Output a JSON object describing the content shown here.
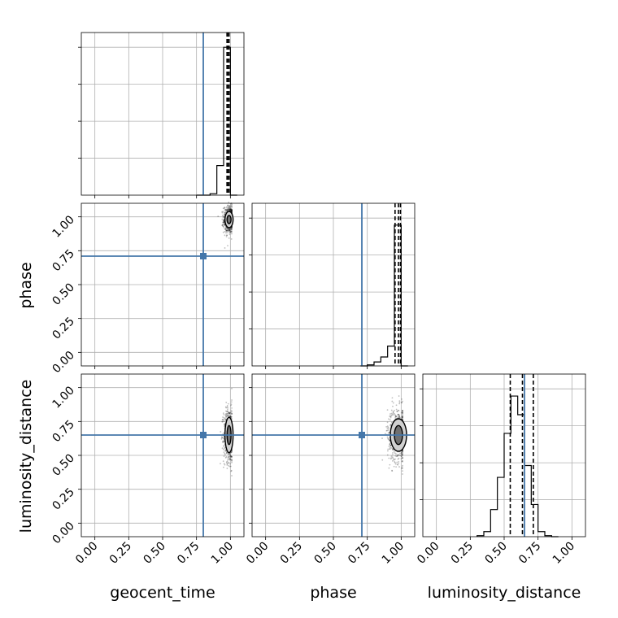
{
  "chart_data": {
    "type": "corner",
    "parameters": [
      "geocent_time",
      "phase",
      "luminosity_distance"
    ],
    "axis_labels": {
      "x": [
        "geocent_time",
        "phase",
        "luminosity_distance"
      ],
      "y": [
        "phase",
        "luminosity_distance"
      ]
    },
    "axis_range": [
      -0.1,
      1.1
    ],
    "ticks": [
      0.0,
      0.25,
      0.5,
      0.75,
      1.0
    ],
    "tick_labels": [
      "0.00",
      "0.25",
      "0.50",
      "0.75",
      "1.00"
    ],
    "grid": true,
    "truths": {
      "geocent_time": 0.8,
      "phase": 0.71,
      "luminosity_distance": 0.65,
      "color": "#4477aa"
    },
    "histograms": [
      {
        "parameter": "geocent_time",
        "bin_edges": [
          0.75,
          0.8,
          0.85,
          0.9,
          0.95,
          1.0,
          1.05
        ],
        "counts": [
          0,
          0,
          0.05,
          1.0,
          5.0,
          0
        ],
        "ylim": [
          0,
          5.5
        ],
        "quantiles": [
          0.975,
          0.98,
          0.99
        ]
      },
      {
        "parameter": "phase",
        "bin_edges": [
          0.7,
          0.75,
          0.8,
          0.85,
          0.9,
          0.95,
          1.0,
          1.05
        ],
        "counts": [
          0,
          0.05,
          0.2,
          0.45,
          1.0,
          7.1,
          0
        ],
        "ylim": [
          0,
          8.2
        ],
        "quantiles": [
          0.955,
          0.98,
          0.995
        ]
      },
      {
        "parameter": "luminosity_distance",
        "bin_edges": [
          0.3,
          0.35,
          0.4,
          0.45,
          0.5,
          0.55,
          0.6,
          0.65,
          0.7,
          0.75,
          0.8,
          0.85,
          0.9
        ],
        "counts": [
          0.03,
          0.15,
          0.8,
          1.75,
          3.05,
          4.15,
          3.6,
          2.1,
          0.95,
          0.15,
          0.03,
          0
        ],
        "ylim": [
          0,
          4.8
        ],
        "quantiles": [
          0.545,
          0.635,
          0.715
        ]
      }
    ],
    "joint_2d": [
      {
        "x_param": "geocent_time",
        "y_param": "phase",
        "center": [
          0.99,
          0.98
        ],
        "spread": [
          0.02,
          0.05
        ],
        "contours": [
          [
            0.015,
            0.03
          ],
          [
            0.03,
            0.06
          ]
        ]
      },
      {
        "x_param": "geocent_time",
        "y_param": "luminosity_distance",
        "center": [
          0.99,
          0.65
        ],
        "spread": [
          0.02,
          0.1
        ],
        "contours": [
          [
            0.015,
            0.07
          ],
          [
            0.03,
            0.13
          ]
        ]
      },
      {
        "x_param": "phase",
        "y_param": "luminosity_distance",
        "center": [
          0.98,
          0.65
        ],
        "spread": [
          0.04,
          0.1
        ],
        "contours": [
          [
            0.03,
            0.07
          ],
          [
            0.06,
            0.12
          ]
        ]
      }
    ]
  }
}
